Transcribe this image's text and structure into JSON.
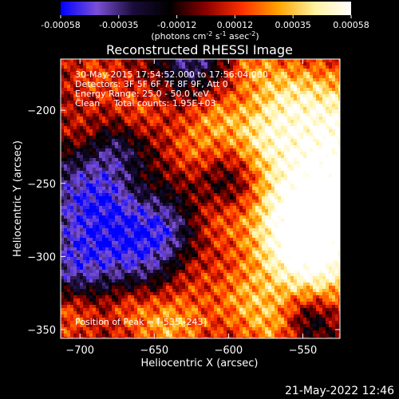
{
  "colorbar": {
    "ticks": [
      "-0.00058",
      "-0.00035",
      "-0.00012",
      "0.00012",
      "0.00035",
      "0.00058"
    ],
    "unit_label": "(photons cm",
    "unit_sup1": "-2",
    "unit_mid": " s",
    "unit_sup2": "-1",
    "unit_end": " asec",
    "unit_sup3": "-2",
    "unit_close": ")",
    "range": [
      -0.00058,
      0.00058
    ],
    "stops": [
      "#0000ff",
      "#7b4fd6",
      "#1a0c38",
      "#000000",
      "#8a0000",
      "#ff3000",
      "#ffa400",
      "#fff2a0",
      "#ffffff"
    ]
  },
  "chart_data": {
    "type": "heatmap",
    "title": "Reconstructed RHESSI Image",
    "xlabel": "Heliocentric X (arcsec)",
    "ylabel": "Heliocentric Y (arcsec)",
    "xlim": [
      -713,
      -525
    ],
    "ylim": [
      -356,
      -165
    ],
    "x_ticks": [
      {
        "value": -700,
        "label": "−700"
      },
      {
        "value": -650,
        "label": "−650"
      },
      {
        "value": -600,
        "label": "−600"
      },
      {
        "value": -550,
        "label": "−550"
      }
    ],
    "y_ticks": [
      {
        "value": -200,
        "label": "−200"
      },
      {
        "value": -250,
        "label": "−250"
      },
      {
        "value": -300,
        "label": "−300"
      },
      {
        "value": -350,
        "label": "−350"
      }
    ],
    "annotations": [
      "30-May-2015 17:54:52.000 to 17:56:04.000",
      "Detectors: 3F 5F 6F 7F 8F 9F, Att 0",
      "Energy Range: 25.0 - 50.0 keV",
      "Clean     Total counts: 1.95E+03"
    ],
    "peak_label": "Position of Peak = [-535,-243]",
    "peak": [
      -535,
      -243
    ],
    "grid": false
  },
  "footer_timestamp": "21-May-2022 12:46"
}
